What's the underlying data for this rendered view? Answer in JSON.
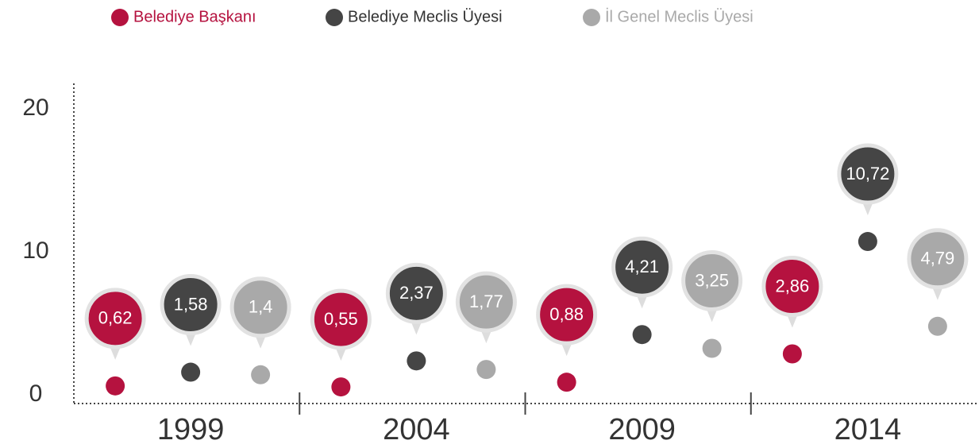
{
  "chart_data": {
    "type": "dot",
    "categories": [
      "1999",
      "2004",
      "2009",
      "2014"
    ],
    "series": [
      {
        "name": "Belediye Başkanı",
        "color": "#b5123f",
        "values": [
          0.62,
          0.55,
          0.88,
          2.86
        ],
        "value_labels": [
          "0,62",
          "0,55",
          "0,88",
          "2,86"
        ]
      },
      {
        "name": "Belediye Meclis Üyesi",
        "color": "#454545",
        "values": [
          1.58,
          2.37,
          4.21,
          10.72
        ],
        "value_labels": [
          "1,58",
          "2,37",
          "4,21",
          "10,72"
        ]
      },
      {
        "name": "İl Genel Meclis Üyesi",
        "color": "#a9a9a9",
        "values": [
          1.4,
          1.77,
          3.25,
          4.79
        ],
        "value_labels": [
          "1,4",
          "1,77",
          "3,25",
          "4,79"
        ]
      }
    ],
    "ylim": [
      0,
      20
    ],
    "yticks": [
      0,
      10,
      20
    ]
  }
}
